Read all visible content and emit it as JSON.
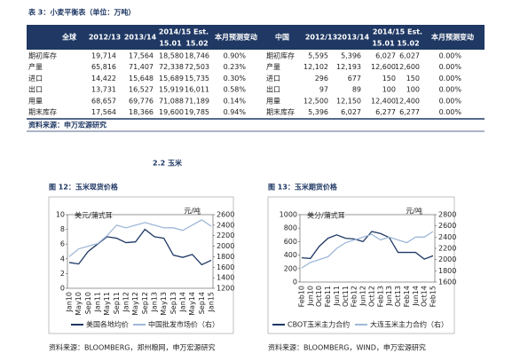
{
  "table_title": "表 3：小麦平衡表（单位：万吨）",
  "table": {
    "header_rows": [
      [
        "全球",
        "2012/13",
        "2013/14",
        "2014/15 Est.",
        "本月预测变动",
        "中国",
        "2012/13",
        "2013/14",
        "2014/15 Est.",
        "本月预测变动"
      ],
      [
        "15.01",
        "15.02",
        "15.01",
        "15.02"
      ]
    ],
    "rows": [
      [
        "期初库存",
        "19,714",
        "17,564",
        "18,580",
        "18,746",
        "0.90%",
        "期初库存",
        "5,595",
        "5,396",
        "6,027",
        "6,027",
        "0.00%"
      ],
      [
        "产量",
        "65,816",
        "71,407",
        "72,338",
        "72,503",
        "0.23%",
        "产量",
        "12,102",
        "12,193",
        "12,600",
        "12,600",
        "0.00%"
      ],
      [
        "进口",
        "14,422",
        "15,648",
        "15,689",
        "15,735",
        "0.30%",
        "进口",
        "296",
        "677",
        "150",
        "150",
        "0.00%"
      ],
      [
        "出口",
        "13,731",
        "16,527",
        "15,919",
        "16,011",
        "0.58%",
        "出口",
        "97",
        "89",
        "100",
        "100",
        "0.00%"
      ],
      [
        "用量",
        "68,657",
        "69,776",
        "71,088",
        "71,189",
        "0.14%",
        "用量",
        "12,500",
        "12,150",
        "12,400",
        "12,400",
        "0.00%"
      ],
      [
        "期末库存",
        "17,564",
        "18,366",
        "19,600",
        "19,785",
        "0.94%",
        "期末库存",
        "5,396",
        "6,027",
        "6,277",
        "6,277",
        "0.00%"
      ]
    ],
    "source": "资料来源：申万宏源研究"
  },
  "section": "2.2  玉米",
  "chart_data": [
    {
      "type": "line",
      "title": "图 12：玉米现货价格",
      "y_label": "美元/蒲式耳",
      "y2_label": "元/吨",
      "categories": [
        "Jan10",
        "May10",
        "Sep10",
        "Jan11",
        "May11",
        "Sep11",
        "Jan12",
        "May12",
        "Sep12",
        "Jan13",
        "May13",
        "Sep13",
        "Jan14",
        "May14",
        "Sep14",
        "Jan15"
      ],
      "ylim": [
        0,
        10
      ],
      "yticks": [
        0,
        2,
        4,
        6,
        8,
        10
      ],
      "y2lim": [
        1200,
        2600
      ],
      "y2ticks": [
        1200,
        1400,
        1600,
        1800,
        2000,
        2200,
        2400,
        2600
      ],
      "series": [
        {
          "name": "美国各地均价",
          "color": "#1f3864",
          "values": [
            3.5,
            3.3,
            5.0,
            6.0,
            7.0,
            6.8,
            6.2,
            6.3,
            8.0,
            7.0,
            6.8,
            4.5,
            4.2,
            4.6,
            3.2,
            3.8
          ]
        },
        {
          "name": "中国批发市场价（右）",
          "color": "#9fb8d8",
          "axis": "y2",
          "values": [
            1800,
            1950,
            2000,
            2050,
            2200,
            2400,
            2350,
            2400,
            2450,
            2400,
            2350,
            2350,
            2300,
            2400,
            2500,
            2380
          ]
        }
      ],
      "source": "资料来源：BLOOMBERG，郑州粮网，申万宏源研究"
    },
    {
      "type": "line",
      "title": "图 13：玉米期货价格",
      "y_label": "美分/蒲式耳",
      "y2_label": "元/吨",
      "categories": [
        "Feb10",
        "Jun10",
        "Oct10",
        "Feb11",
        "Jun11",
        "Oct11",
        "Feb12",
        "Jun12",
        "Oct12",
        "Feb13",
        "Jun13",
        "Oct13",
        "Feb14",
        "Jun14",
        "Oct14",
        "Feb15"
      ],
      "ylim": [
        0,
        1000
      ],
      "yticks": [
        0,
        200,
        400,
        600,
        800,
        1000
      ],
      "y2lim": [
        1600,
        2800
      ],
      "y2ticks": [
        1600,
        1800,
        2000,
        2200,
        2400,
        2600,
        2800
      ],
      "series": [
        {
          "name": "CBOT玉米主力合约",
          "color": "#1f3864",
          "values": [
            360,
            350,
            530,
            650,
            700,
            650,
            640,
            600,
            750,
            720,
            660,
            440,
            440,
            440,
            340,
            390
          ]
        },
        {
          "name": "大连玉米主力合约（右）",
          "color": "#9fb8d8",
          "axis": "y2",
          "values": [
            1850,
            1950,
            2000,
            2050,
            2200,
            2300,
            2350,
            2400,
            2450,
            2350,
            2400,
            2350,
            2300,
            2400,
            2400,
            2500
          ]
        }
      ],
      "source": "资料来源：BLOOMBERG，WIND，申万宏源研究"
    }
  ]
}
